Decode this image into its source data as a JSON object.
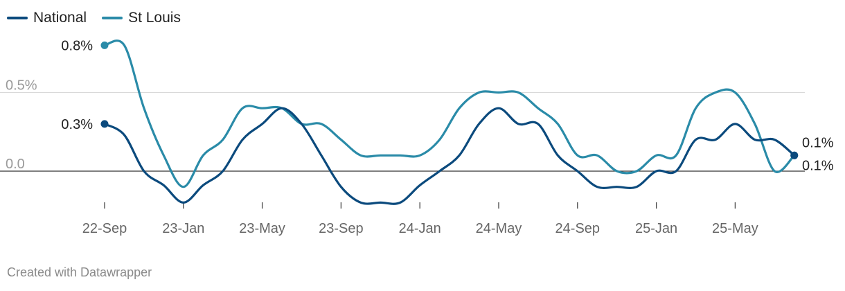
{
  "legend": [
    {
      "label": "National",
      "color": "#0b4a7d"
    },
    {
      "label": "St Louis",
      "color": "#2a8ba8"
    }
  ],
  "credit": "Created with Datawrapper",
  "chart_data": {
    "type": "line",
    "x_ticks": [
      "22-Sep",
      "23-Jan",
      "23-May",
      "23-Sep",
      "24-Jan",
      "24-May",
      "24-Sep",
      "25-Jan",
      "25-May"
    ],
    "y_ticks": [
      {
        "value": 0.0,
        "label": "0.0"
      },
      {
        "value": 0.5,
        "label": "0.5%"
      }
    ],
    "ylim": [
      -0.23,
      0.84
    ],
    "series": [
      {
        "name": "National",
        "color": "#0b4a7d",
        "x": [
          "2022-09",
          "2022-10",
          "2022-11",
          "2022-12",
          "2023-01",
          "2023-02",
          "2023-03",
          "2023-04",
          "2023-05",
          "2023-06",
          "2023-07",
          "2023-08",
          "2023-09",
          "2023-10",
          "2023-11",
          "2023-12",
          "2024-01",
          "2024-02",
          "2024-03",
          "2024-04",
          "2024-05",
          "2024-06",
          "2024-07",
          "2024-08",
          "2024-09",
          "2024-10",
          "2024-11",
          "2024-12",
          "2025-01",
          "2025-02",
          "2025-03",
          "2025-04",
          "2025-05",
          "2025-06",
          "2025-07",
          "2025-08"
        ],
        "values": [
          0.3,
          0.23,
          0.0,
          -0.09,
          -0.2,
          -0.09,
          0.0,
          0.2,
          0.3,
          0.4,
          0.3,
          0.1,
          -0.1,
          -0.2,
          -0.2,
          -0.2,
          -0.09,
          0.0,
          0.1,
          0.3,
          0.4,
          0.3,
          0.3,
          0.1,
          0.0,
          -0.1,
          -0.1,
          -0.1,
          0.0,
          0.0,
          0.2,
          0.2,
          0.3,
          0.2,
          0.2,
          0.1
        ],
        "first_label": "0.3%",
        "last_label": "0.1%"
      },
      {
        "name": "St Louis",
        "color": "#2a8ba8",
        "x": [
          "2022-09",
          "2022-10",
          "2022-11",
          "2022-12",
          "2023-01",
          "2023-02",
          "2023-03",
          "2023-04",
          "2023-05",
          "2023-06",
          "2023-07",
          "2023-08",
          "2023-09",
          "2023-10",
          "2023-11",
          "2023-12",
          "2024-01",
          "2024-02",
          "2024-03",
          "2024-04",
          "2024-05",
          "2024-06",
          "2024-07",
          "2024-08",
          "2024-09",
          "2024-10",
          "2024-11",
          "2024-12",
          "2025-01",
          "2025-02",
          "2025-03",
          "2025-04",
          "2025-05",
          "2025-06",
          "2025-07",
          "2025-08"
        ],
        "values": [
          0.8,
          0.8,
          0.4,
          0.1,
          -0.1,
          0.1,
          0.2,
          0.4,
          0.4,
          0.4,
          0.3,
          0.3,
          0.2,
          0.1,
          0.1,
          0.1,
          0.1,
          0.2,
          0.4,
          0.5,
          0.5,
          0.5,
          0.4,
          0.3,
          0.1,
          0.1,
          0.0,
          0.0,
          0.1,
          0.1,
          0.4,
          0.5,
          0.5,
          0.3,
          0.0,
          0.1
        ],
        "first_label": "0.8%",
        "last_label": "0.1%"
      }
    ],
    "grid": true,
    "legend_position": "top-left"
  }
}
